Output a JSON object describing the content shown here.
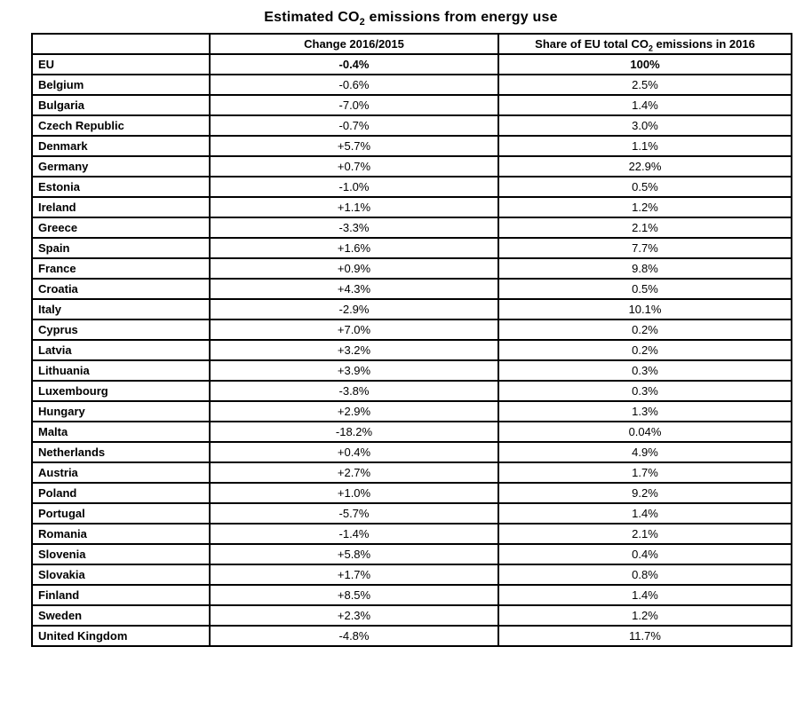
{
  "title": {
    "pre": "Estimated CO",
    "sub": "2",
    "post": " emissions from energy use"
  },
  "table": {
    "corner": "",
    "col_change": "Change 2016/2015",
    "col_share": {
      "pre": "Share of EU total CO",
      "sub": "2",
      "post": " emissions in 2016"
    },
    "eu_row": {
      "name": "EU",
      "change": "-0.4%",
      "share": "100%"
    },
    "rows": [
      {
        "name": "Belgium",
        "change": "-0.6%",
        "share": "2.5%"
      },
      {
        "name": "Bulgaria",
        "change": "-7.0%",
        "share": "1.4%"
      },
      {
        "name": "Czech Republic",
        "change": "-0.7%",
        "share": "3.0%"
      },
      {
        "name": "Denmark",
        "change": "+5.7%",
        "share": "1.1%"
      },
      {
        "name": "Germany",
        "change": "+0.7%",
        "share": "22.9%"
      },
      {
        "name": "Estonia",
        "change": "-1.0%",
        "share": "0.5%"
      },
      {
        "name": "Ireland",
        "change": "+1.1%",
        "share": "1.2%"
      },
      {
        "name": "Greece",
        "change": "-3.3%",
        "share": "2.1%"
      },
      {
        "name": "Spain",
        "change": "+1.6%",
        "share": "7.7%"
      },
      {
        "name": "France",
        "change": "+0.9%",
        "share": "9.8%"
      },
      {
        "name": "Croatia",
        "change": "+4.3%",
        "share": "0.5%"
      },
      {
        "name": "Italy",
        "change": "-2.9%",
        "share": "10.1%"
      },
      {
        "name": "Cyprus",
        "change": "+7.0%",
        "share": "0.2%"
      },
      {
        "name": "Latvia",
        "change": "+3.2%",
        "share": "0.2%"
      },
      {
        "name": "Lithuania",
        "change": "+3.9%",
        "share": "0.3%"
      },
      {
        "name": "Luxembourg",
        "change": "-3.8%",
        "share": "0.3%"
      },
      {
        "name": "Hungary",
        "change": "+2.9%",
        "share": "1.3%"
      },
      {
        "name": "Malta",
        "change": "-18.2%",
        "share": "0.04%"
      },
      {
        "name": "Netherlands",
        "change": "+0.4%",
        "share": "4.9%"
      },
      {
        "name": "Austria",
        "change": "+2.7%",
        "share": "1.7%"
      },
      {
        "name": "Poland",
        "change": "+1.0%",
        "share": "9.2%"
      },
      {
        "name": "Portugal",
        "change": "-5.7%",
        "share": "1.4%"
      },
      {
        "name": "Romania",
        "change": "-1.4%",
        "share": "2.1%"
      },
      {
        "name": "Slovenia",
        "change": "+5.8%",
        "share": "0.4%"
      },
      {
        "name": "Slovakia",
        "change": "+1.7%",
        "share": "0.8%"
      },
      {
        "name": "Finland",
        "change": "+8.5%",
        "share": "1.4%"
      },
      {
        "name": "Sweden",
        "change": "+2.3%",
        "share": "1.2%"
      },
      {
        "name": "United Kingdom",
        "change": "-4.8%",
        "share": "11.7%"
      }
    ]
  },
  "colors": {
    "text": "#000000",
    "border": "#000000",
    "background": "#ffffff"
  }
}
